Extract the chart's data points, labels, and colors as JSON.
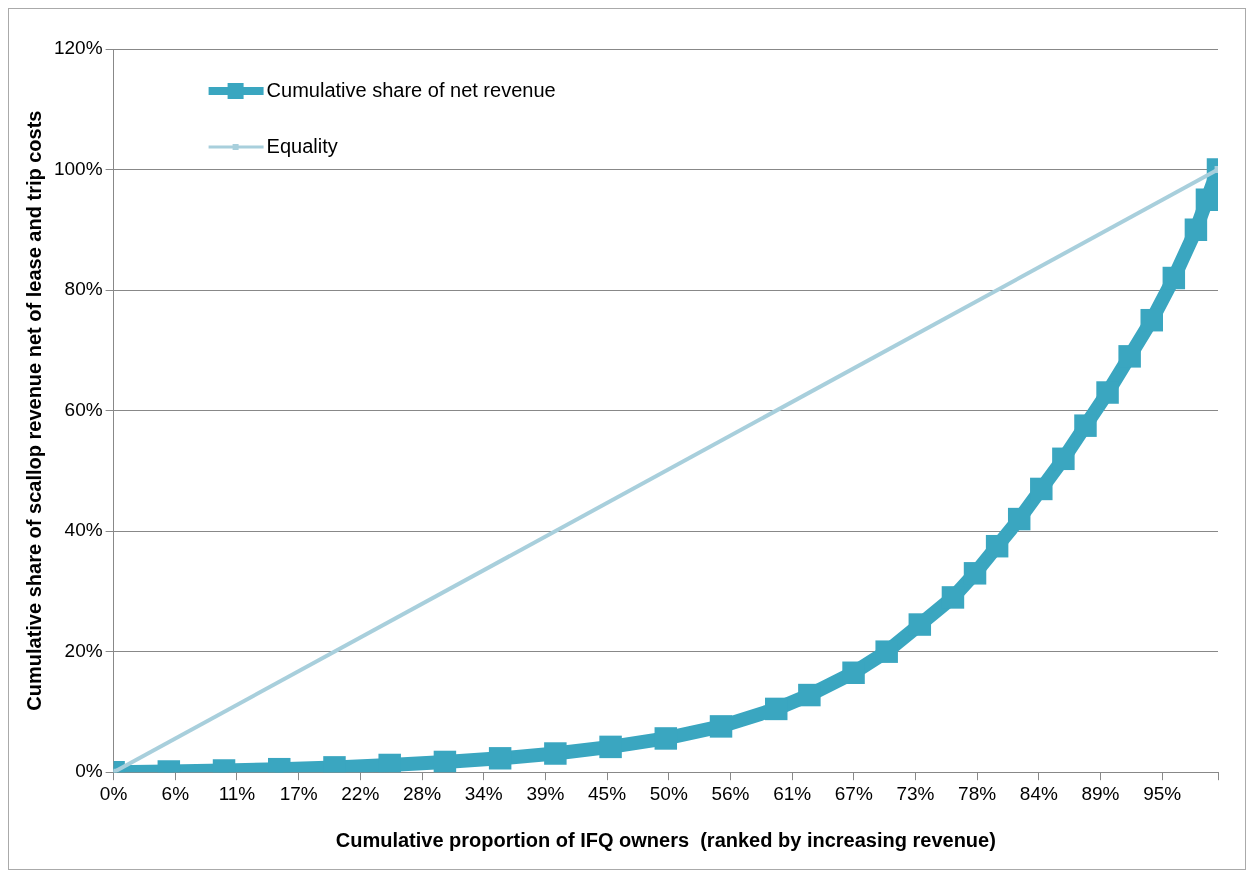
{
  "chart_data": {
    "type": "line",
    "xlabel": "Cumulative proportion of IFQ owners  (ranked by increasing revenue)",
    "ylabel": "Cumulative share of scallop revenue net of lease and trip costs",
    "xlim": [
      0,
      100
    ],
    "ylim": [
      0,
      120
    ],
    "xticks": [
      {
        "value": 0,
        "label": "0%"
      },
      {
        "value": 5.59,
        "label": "6%"
      },
      {
        "value": 11.17,
        "label": "11%"
      },
      {
        "value": 16.76,
        "label": "17%"
      },
      {
        "value": 22.34,
        "label": "22%"
      },
      {
        "value": 27.93,
        "label": "28%"
      },
      {
        "value": 33.51,
        "label": "34%"
      },
      {
        "value": 39.1,
        "label": "39%"
      },
      {
        "value": 44.68,
        "label": "45%"
      },
      {
        "value": 50.27,
        "label": "50%"
      },
      {
        "value": 55.85,
        "label": "56%"
      },
      {
        "value": 61.44,
        "label": "61%"
      },
      {
        "value": 67.02,
        "label": "67%"
      },
      {
        "value": 72.61,
        "label": "73%"
      },
      {
        "value": 78.19,
        "label": "78%"
      },
      {
        "value": 83.78,
        "label": "84%"
      },
      {
        "value": 89.36,
        "label": "89%"
      },
      {
        "value": 94.95,
        "label": "95%"
      },
      {
        "value": 100,
        "label": null
      }
    ],
    "yticks": [
      {
        "value": 0,
        "label": "0%"
      },
      {
        "value": 20,
        "label": "20%"
      },
      {
        "value": 40,
        "label": "40%"
      },
      {
        "value": 60,
        "label": "60%"
      },
      {
        "value": 80,
        "label": "80%"
      },
      {
        "value": 100,
        "label": "100%"
      },
      {
        "value": 120,
        "label": "120%"
      }
    ],
    "grid": "y",
    "legend": "top left",
    "marker": "square",
    "series": [
      {
        "name": "Cumulative share of net revenue",
        "color": "#3aa6c0",
        "x": [
          0,
          5,
          10,
          15,
          20,
          25,
          30,
          35,
          40,
          45,
          50,
          55,
          60,
          63,
          67,
          70,
          73,
          76,
          78,
          80,
          82,
          84,
          86,
          88,
          90,
          92,
          94,
          96,
          98,
          99,
          100
        ],
        "values": [
          0,
          0.1,
          0.3,
          0.5,
          0.8,
          1.2,
          1.7,
          2.3,
          3.1,
          4.2,
          5.6,
          7.6,
          10.5,
          12.8,
          16.5,
          20,
          24.5,
          29,
          33,
          37.5,
          42,
          47,
          52,
          57.5,
          63,
          69,
          75,
          82,
          90,
          95,
          100
        ]
      },
      {
        "name": "Equality",
        "color": "#a8cfdc",
        "x": [
          0,
          100
        ],
        "values": [
          0,
          100
        ]
      }
    ]
  }
}
